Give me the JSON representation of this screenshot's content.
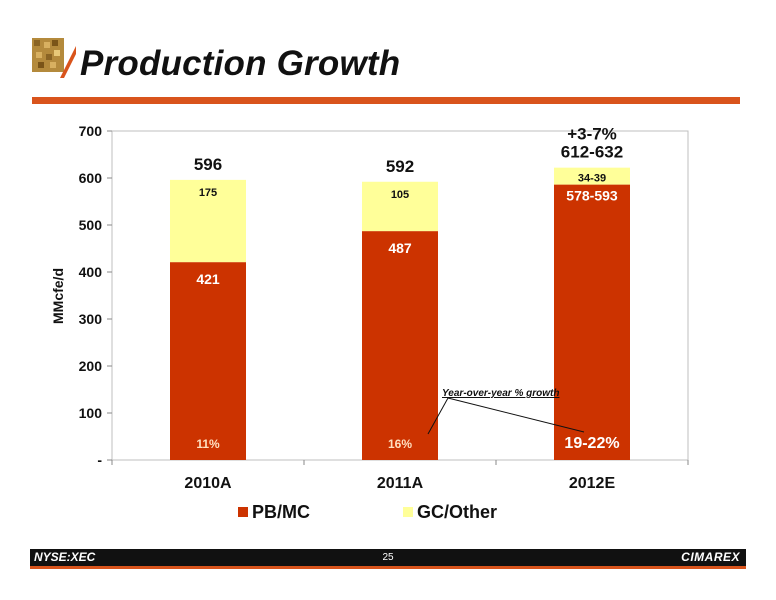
{
  "title": "Production Growth",
  "footer": {
    "ticker": "NYSE:XEC",
    "page": "25",
    "brand": "CIMAREX"
  },
  "colors": {
    "primary": "#d9541c",
    "pb_mc": "#cc3300",
    "gc_other": "#ffff99"
  },
  "chart_data": {
    "type": "bar",
    "stacked": true,
    "categories": [
      "2010A",
      "2011A",
      "2012E"
    ],
    "series": [
      {
        "name": "PB/MC",
        "values": [
          421,
          487,
          586
        ],
        "labels": [
          "421",
          "487",
          "578-593"
        ]
      },
      {
        "name": "GC/Other",
        "values": [
          175,
          105,
          36
        ],
        "labels": [
          "175",
          "105",
          "34-39"
        ]
      }
    ],
    "totals": [
      "596",
      "592",
      "612-632"
    ],
    "growth_labels": [
      "11%",
      "16%",
      "19-22%"
    ],
    "growth_2012": "+3-7%",
    "annotation": "Year-over-year  % growth",
    "ylabel": "MMcfe/d",
    "yticks": [
      "-",
      "100",
      "200",
      "300",
      "400",
      "500",
      "600",
      "700"
    ],
    "ylim": [
      0,
      700
    ],
    "grid": false,
    "legend_position": "bottom"
  }
}
